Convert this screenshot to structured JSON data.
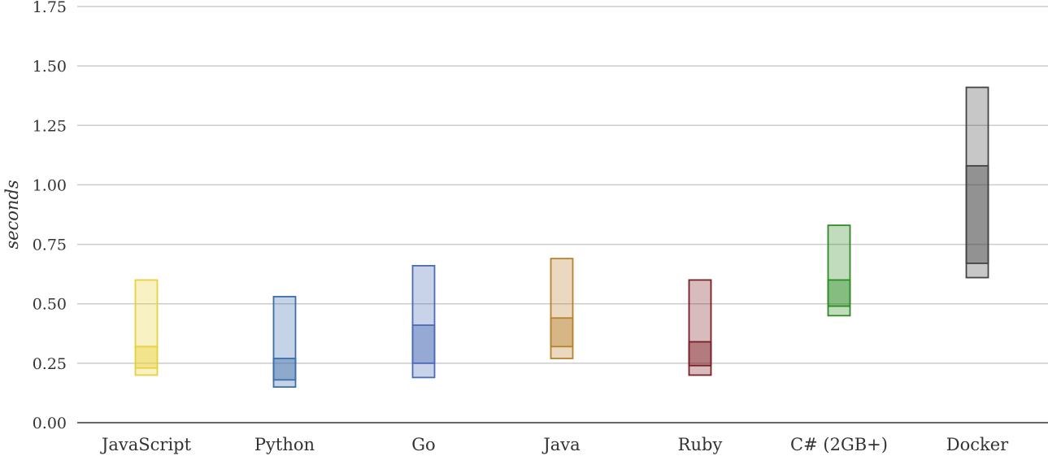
{
  "chart_data": {
    "type": "box",
    "ylabel": "seconds",
    "ylim": [
      0,
      1.75
    ],
    "yticks": [
      "0.00",
      "0.25",
      "0.50",
      "0.75",
      "1.00",
      "1.25",
      "1.50",
      "1.75"
    ],
    "ytick_values": [
      0,
      0.25,
      0.5,
      0.75,
      1.0,
      1.25,
      1.5,
      1.75
    ],
    "grid": true,
    "categories": [
      "JavaScript",
      "Python",
      "Go",
      "Java",
      "Ruby",
      "C# (2GB+)",
      "Docker"
    ],
    "series": [
      {
        "category": "JavaScript",
        "min": 0.2,
        "q1": 0.23,
        "q3": 0.32,
        "max": 0.6,
        "color": "#e8d23c"
      },
      {
        "category": "Python",
        "min": 0.15,
        "q1": 0.18,
        "q3": 0.27,
        "max": 0.53,
        "color": "#3c6eaa"
      },
      {
        "category": "Go",
        "min": 0.19,
        "q1": 0.25,
        "q3": 0.41,
        "max": 0.66,
        "color": "#4a6bb5"
      },
      {
        "category": "Java",
        "min": 0.27,
        "q1": 0.32,
        "q3": 0.44,
        "max": 0.69,
        "color": "#b8812e"
      },
      {
        "category": "Ruby",
        "min": 0.2,
        "q1": 0.24,
        "q3": 0.34,
        "max": 0.6,
        "color": "#7a1f24"
      },
      {
        "category": "C# (2GB+)",
        "min": 0.45,
        "q1": 0.49,
        "q3": 0.6,
        "max": 0.83,
        "color": "#2e8b22"
      },
      {
        "category": "Docker",
        "min": 0.61,
        "q1": 0.67,
        "q3": 1.08,
        "max": 1.41,
        "color": "#444444"
      }
    ]
  }
}
